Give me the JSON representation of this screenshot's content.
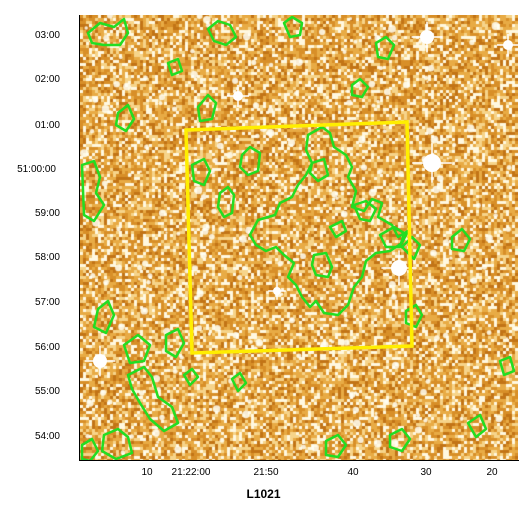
{
  "title": "L1021",
  "dec_ticks": [
    "03:00",
    "02:00",
    "01:00",
    "51:00:00",
    "59:00",
    "58:00",
    "57:00",
    "56:00",
    "55:00",
    "54:00"
  ],
  "ra_ticks": [
    "10",
    "21:22:00",
    "21:50",
    "40",
    "30",
    "20"
  ],
  "colors": {
    "background_map": "#e3a53a",
    "contour": "#22dd22",
    "field_box": "#ffee00"
  }
}
